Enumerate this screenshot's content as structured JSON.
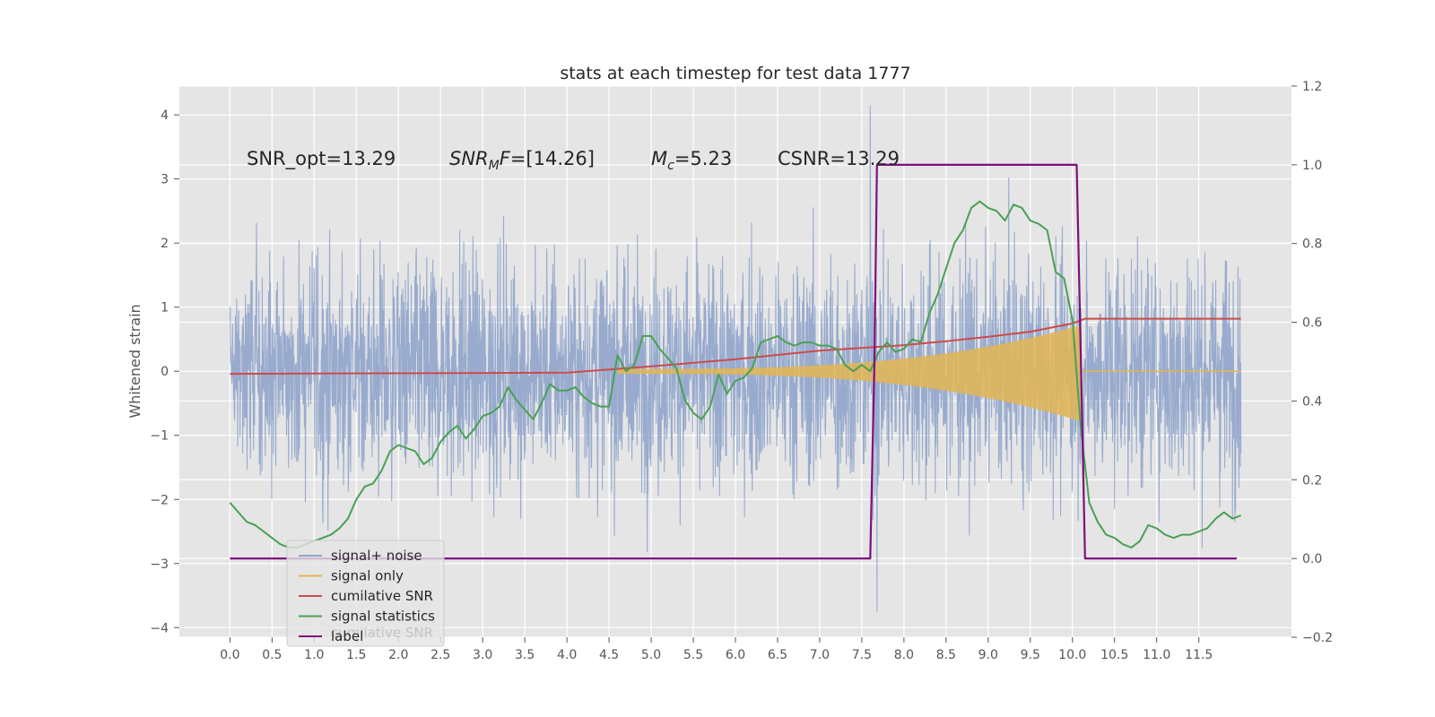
{
  "chart_data": {
    "type": "line",
    "title": "stats at each timestep for test data 1777",
    "ylabel": "Whitened strain",
    "ylabel_right": "",
    "xlim": [
      -0.6,
      12.6
    ],
    "ylim": [
      -4.15,
      4.45
    ],
    "ylim_right": [
      -0.2,
      1.2
    ],
    "x_ticks": [
      "0.0",
      "0.5",
      "1.0",
      "1.5",
      "2.0",
      "2.5",
      "3.0",
      "3.5",
      "4.0",
      "4.5",
      "5.0",
      "5.5",
      "6.0",
      "6.5",
      "7.0",
      "7.5",
      "8.0",
      "8.5",
      "9.0",
      "9.5",
      "10.0",
      "10.5",
      "11.0",
      "11.5"
    ],
    "y_ticks": [
      "4",
      "3",
      "2",
      "1",
      "0",
      "−1",
      "−2",
      "−3",
      "−4"
    ],
    "y_ticks_right": [
      "1.2",
      "1.0",
      "0.8",
      "0.6",
      "0.4",
      "0.2",
      "0.0",
      "−0.2"
    ],
    "grid": true,
    "legend_position": "lower-left",
    "annotations": [
      {
        "text": "SNR_opt=13.29",
        "at_x": 0.2
      },
      {
        "text": "SNR_MF=[14.26]",
        "at_x": 2.6
      },
      {
        "text": "M_c=5.23",
        "at_x": 5.0
      },
      {
        "text": "CSNR=13.29",
        "at_x": 6.5
      }
    ],
    "annotations_display": {
      "snr_opt": "SNR_opt=13.29",
      "snr_mf_base": "SNR",
      "snr_mf_sub": "M",
      "snr_mf_rest_italic": "F",
      "snr_mf_value": "=[14.26]",
      "mc_base": "M",
      "mc_sub": "c",
      "mc_value": "=5.23",
      "csnr": "CSNR=13.29"
    },
    "series": [
      {
        "name": "signal+ noise",
        "axis": "left",
        "color": "#8fa4cb",
        "description_points": {
          "x_range": [
            0.0,
            12.0
          ],
          "typical_envelope": [
            -2.3,
            2.3
          ],
          "max": 4.15,
          "min": -3.75
        }
      },
      {
        "name": "signal only",
        "axis": "left",
        "color": "#e3b552",
        "chirp": {
          "start": 4.6,
          "end": 10.1,
          "amplitude_start": 0.05,
          "amplitude_end": 1.0
        }
      },
      {
        "name": "cumilative SNR",
        "axis": "right",
        "color": "#cc4b4b",
        "x": [
          0.0,
          4.0,
          5.0,
          6.0,
          7.0,
          8.0,
          8.5,
          9.0,
          9.5,
          10.0,
          10.15,
          12.0
        ],
        "y": [
          0.469,
          0.472,
          0.488,
          0.506,
          0.528,
          0.542,
          0.552,
          0.563,
          0.576,
          0.597,
          0.609,
          0.609
        ]
      },
      {
        "name": "signal statistics",
        "axis": "left",
        "color": "#4aa055",
        "x": [
          0.0,
          0.1,
          0.2,
          0.3,
          0.4,
          0.5,
          0.6,
          0.7,
          0.8,
          0.9,
          1.0,
          1.1,
          1.2,
          1.3,
          1.4,
          1.5,
          1.6,
          1.7,
          1.8,
          1.9,
          2.0,
          2.1,
          2.2,
          2.3,
          2.4,
          2.5,
          2.6,
          2.7,
          2.8,
          2.9,
          3.0,
          3.1,
          3.2,
          3.3,
          3.4,
          3.5,
          3.6,
          3.7,
          3.8,
          3.9,
          4.0,
          4.1,
          4.2,
          4.3,
          4.4,
          4.5,
          4.6,
          4.7,
          4.8,
          4.9,
          5.0,
          5.1,
          5.2,
          5.3,
          5.4,
          5.5,
          5.6,
          5.7,
          5.8,
          5.9,
          6.0,
          6.1,
          6.2,
          6.3,
          6.4,
          6.5,
          6.6,
          6.7,
          6.8,
          6.9,
          7.0,
          7.1,
          7.2,
          7.3,
          7.4,
          7.5,
          7.6,
          7.7,
          7.8,
          7.9,
          8.0,
          8.1,
          8.2,
          8.3,
          8.4,
          8.5,
          8.6,
          8.7,
          8.8,
          8.9,
          9.0,
          9.1,
          9.2,
          9.3,
          9.4,
          9.5,
          9.6,
          9.7,
          9.8,
          9.9,
          10.0,
          10.1,
          10.2,
          10.3,
          10.4,
          10.5,
          10.6,
          10.7,
          10.8,
          10.9,
          11.0,
          11.1,
          11.2,
          11.3,
          11.4,
          11.5,
          11.6,
          11.7,
          11.8,
          11.9,
          12.0
        ],
        "y": [
          -2.05,
          -2.2,
          -2.35,
          -2.4,
          -2.5,
          -2.6,
          -2.7,
          -2.75,
          -2.75,
          -2.7,
          -2.65,
          -2.6,
          -2.55,
          -2.45,
          -2.3,
          -2.0,
          -1.8,
          -1.75,
          -1.55,
          -1.25,
          -1.15,
          -1.2,
          -1.25,
          -1.45,
          -1.35,
          -1.1,
          -0.95,
          -0.85,
          -1.05,
          -0.9,
          -0.7,
          -0.65,
          -0.55,
          -0.25,
          -0.45,
          -0.6,
          -0.75,
          -0.5,
          -0.2,
          -0.3,
          -0.3,
          -0.25,
          -0.4,
          -0.5,
          -0.55,
          -0.55,
          0.25,
          0.0,
          0.1,
          0.55,
          0.55,
          0.35,
          0.2,
          0.05,
          -0.45,
          -0.65,
          -0.75,
          -0.55,
          -0.05,
          -0.35,
          -0.15,
          -0.1,
          0.05,
          0.45,
          0.5,
          0.55,
          0.45,
          0.4,
          0.45,
          0.45,
          0.4,
          0.4,
          0.35,
          0.1,
          0.0,
          0.1,
          0.0,
          0.3,
          0.45,
          0.3,
          0.35,
          0.5,
          0.45,
          0.9,
          1.2,
          1.6,
          2.0,
          2.2,
          2.55,
          2.65,
          2.55,
          2.5,
          2.35,
          2.6,
          2.55,
          2.35,
          2.3,
          2.2,
          1.55,
          1.45,
          0.8,
          -0.9,
          -2.05,
          -2.35,
          -2.55,
          -2.6,
          -2.7,
          -2.75,
          -2.65,
          -2.4,
          -2.45,
          -2.55,
          -2.6,
          -2.55,
          -2.55,
          -2.5,
          -2.45,
          -2.3,
          -2.2,
          -2.3,
          -2.25
        ]
      },
      {
        "name": "label",
        "axis": "right",
        "color": "#7f0f7f",
        "x": [
          0.0,
          7.6,
          7.65,
          7.68,
          10.05,
          10.1,
          10.15,
          11.95
        ],
        "y": [
          0.0,
          0.0,
          0.5,
          1.0,
          1.0,
          0.5,
          0.0,
          0.0
        ]
      }
    ],
    "ghost_legend_text": "cumilative SNR"
  }
}
